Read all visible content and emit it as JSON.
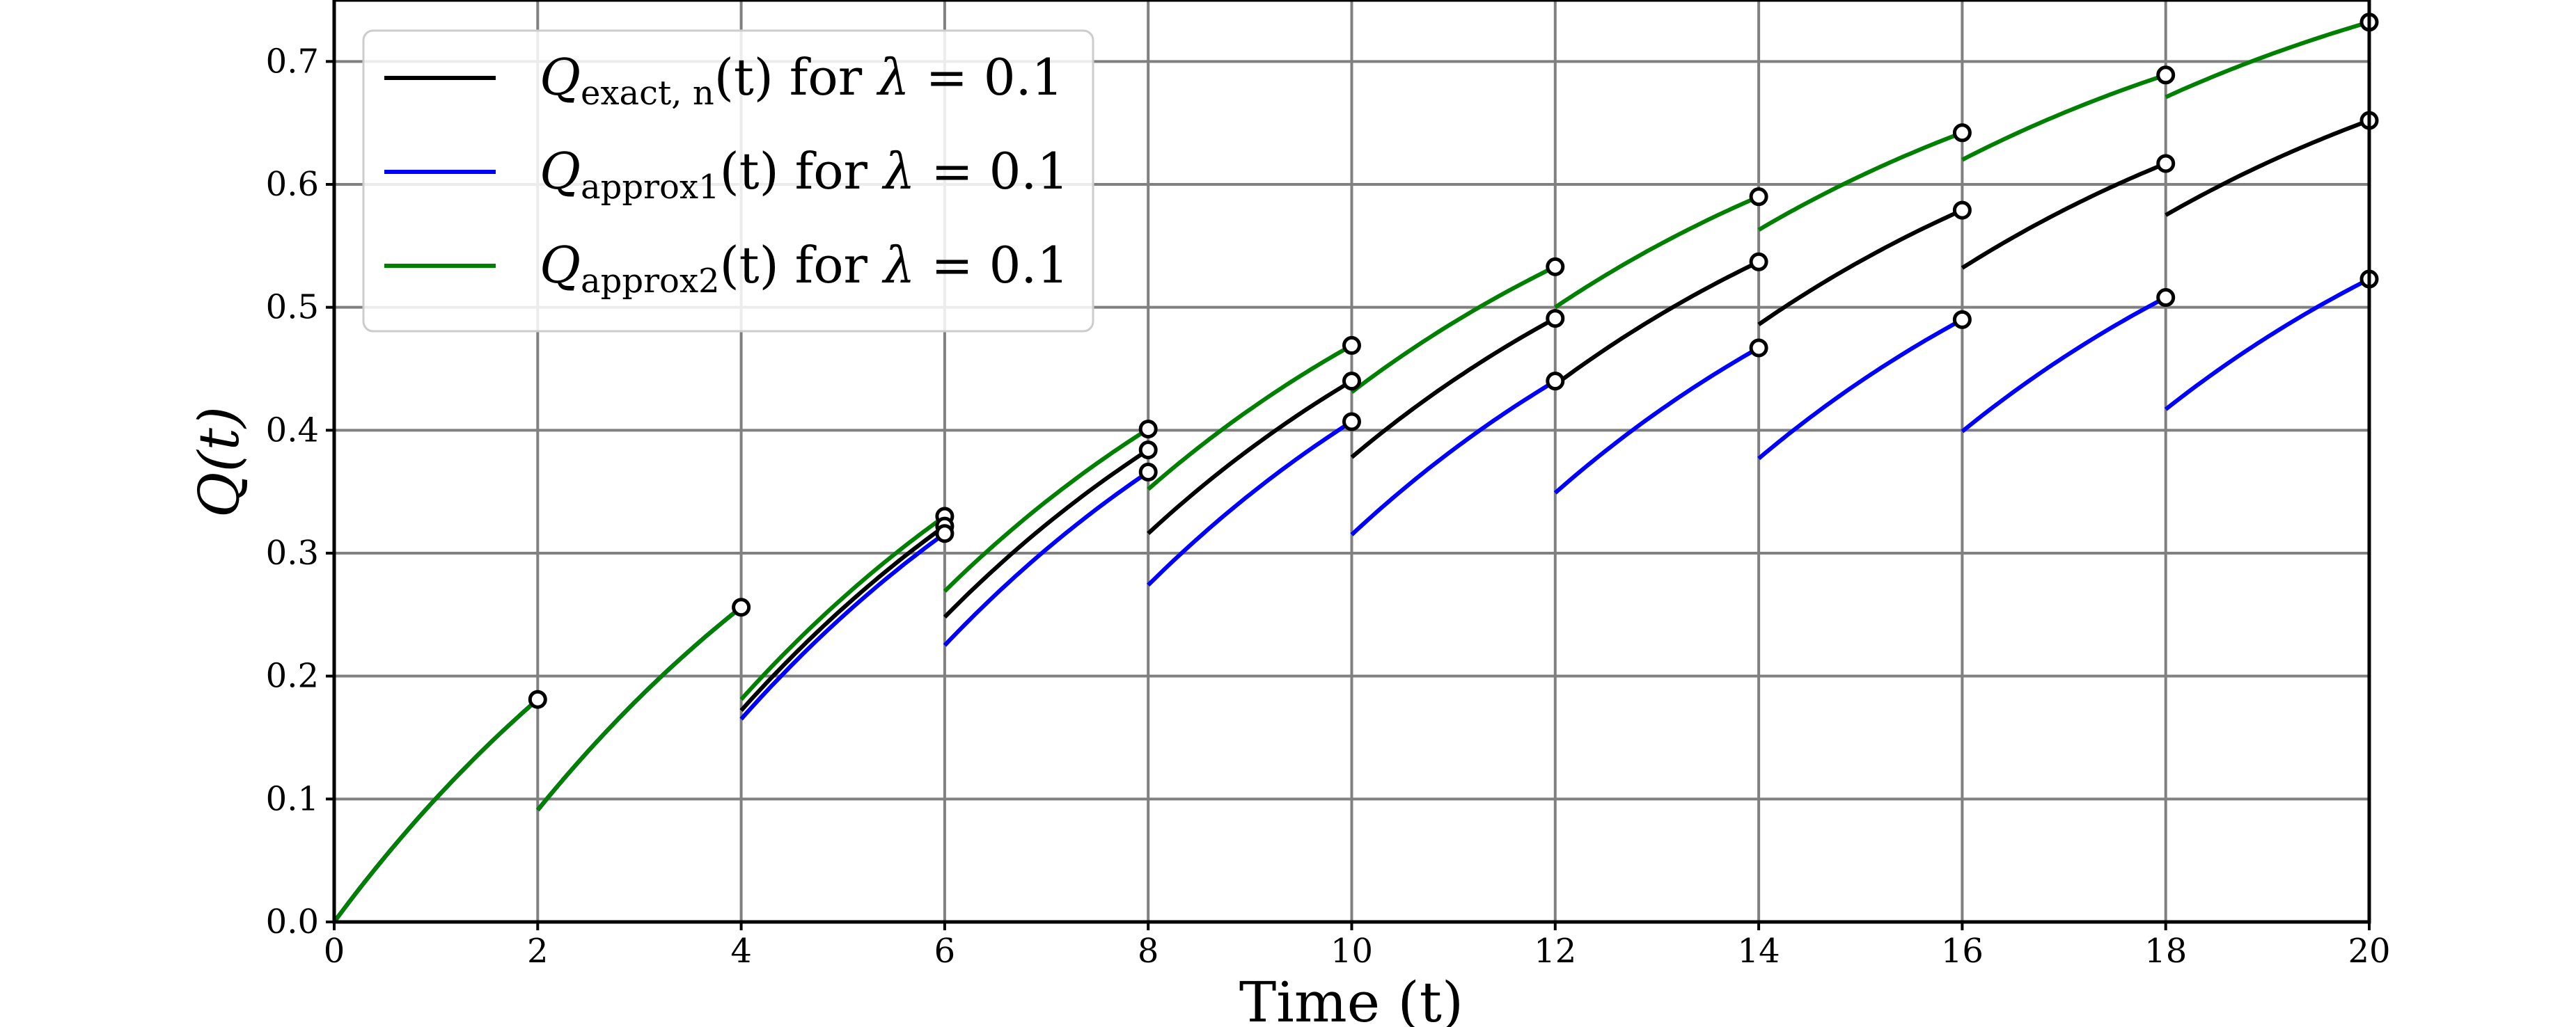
{
  "chart_data": {
    "type": "line",
    "xlabel": "Time (t)",
    "ylabel": "Q(t)",
    "xlim": [
      0,
      20
    ],
    "ylim": [
      0,
      0.75
    ],
    "xticks": [
      0,
      2,
      4,
      6,
      8,
      10,
      12,
      14,
      16,
      18,
      20
    ],
    "yticks": [
      0.0,
      0.1,
      0.2,
      0.3,
      0.4,
      0.5,
      0.6,
      0.7
    ],
    "xtick_labels": [
      "0",
      "2",
      "4",
      "6",
      "8",
      "10",
      "12",
      "14",
      "16",
      "18",
      "20"
    ],
    "ytick_labels": [
      "0.0",
      "0.1",
      "0.2",
      "0.3",
      "0.4",
      "0.5",
      "0.6",
      "0.7"
    ],
    "grid": true,
    "legend_position": "top-left",
    "series": [
      {
        "name": "Q_exact,n(t) for λ = 0.1",
        "legend": {
          "symbol": "Q",
          "subscript": "exact, n",
          "mid": "(t) for ",
          "lambda": "λ",
          "value": "= 0.1"
        },
        "color": "#000000",
        "segments": [
          {
            "x": [
              0,
              2
            ],
            "y": [
              0.0,
              0.181
            ]
          },
          {
            "x": [
              2,
              4
            ],
            "y": [
              0.091,
              0.256
            ]
          },
          {
            "x": [
              4,
              6
            ],
            "y": [
              0.172,
              0.322
            ]
          },
          {
            "x": [
              6,
              8
            ],
            "y": [
              0.248,
              0.384
            ]
          },
          {
            "x": [
              8,
              10
            ],
            "y": [
              0.316,
              0.44
            ]
          },
          {
            "x": [
              10,
              12
            ],
            "y": [
              0.378,
              0.491
            ]
          },
          {
            "x": [
              12,
              14
            ],
            "y": [
              0.437,
              0.537
            ]
          },
          {
            "x": [
              14,
              16
            ],
            "y": [
              0.486,
              0.579
            ]
          },
          {
            "x": [
              16,
              18
            ],
            "y": [
              0.532,
              0.617
            ]
          },
          {
            "x": [
              18,
              20
            ],
            "y": [
              0.575,
              0.652
            ]
          }
        ]
      },
      {
        "name": "Q_approx1(t) for λ = 0.1",
        "legend": {
          "symbol": "Q",
          "subscript": "approx1",
          "mid": "(t) for ",
          "lambda": "λ",
          "value": "= 0.1"
        },
        "color": "#0000ff",
        "segments": [
          {
            "x": [
              0,
              2
            ],
            "y": [
              0.0,
              0.181
            ]
          },
          {
            "x": [
              2,
              4
            ],
            "y": [
              0.091,
              0.256
            ]
          },
          {
            "x": [
              4,
              6
            ],
            "y": [
              0.165,
              0.316
            ]
          },
          {
            "x": [
              6,
              8
            ],
            "y": [
              0.225,
              0.366
            ]
          },
          {
            "x": [
              8,
              10
            ],
            "y": [
              0.274,
              0.407
            ]
          },
          {
            "x": [
              10,
              12
            ],
            "y": [
              0.315,
              0.44
            ]
          },
          {
            "x": [
              12,
              14
            ],
            "y": [
              0.349,
              0.467
            ]
          },
          {
            "x": [
              14,
              16
            ],
            "y": [
              0.377,
              0.49
            ]
          },
          {
            "x": [
              16,
              18
            ],
            "y": [
              0.399,
              0.508
            ]
          },
          {
            "x": [
              18,
              20
            ],
            "y": [
              0.417,
              0.523
            ]
          }
        ]
      },
      {
        "name": "Q_approx2(t) for λ = 0.1",
        "legend": {
          "symbol": "Q",
          "subscript": "approx2",
          "mid": "(t) for ",
          "lambda": "λ",
          "value": "= 0.1"
        },
        "color": "#008000",
        "segments": [
          {
            "x": [
              0,
              2
            ],
            "y": [
              0.0,
              0.181
            ]
          },
          {
            "x": [
              2,
              4
            ],
            "y": [
              0.091,
              0.256
            ]
          },
          {
            "x": [
              4,
              6
            ],
            "y": [
              0.181,
              0.33
            ]
          },
          {
            "x": [
              6,
              8
            ],
            "y": [
              0.269,
              0.401
            ]
          },
          {
            "x": [
              8,
              10
            ],
            "y": [
              0.352,
              0.469
            ]
          },
          {
            "x": [
              10,
              12
            ],
            "y": [
              0.431,
              0.533
            ]
          },
          {
            "x": [
              12,
              14
            ],
            "y": [
              0.5,
              0.59
            ]
          },
          {
            "x": [
              14,
              16
            ],
            "y": [
              0.563,
              0.642
            ]
          },
          {
            "x": [
              16,
              18
            ],
            "y": [
              0.62,
              0.689
            ]
          },
          {
            "x": [
              18,
              20
            ],
            "y": [
              0.671,
              0.732
            ]
          }
        ]
      }
    ],
    "markers": {
      "style": "open-circle",
      "points": [
        {
          "x": 2,
          "y": 0.181
        },
        {
          "x": 4,
          "y": 0.256
        },
        {
          "x": 6,
          "y": 0.33
        },
        {
          "x": 6,
          "y": 0.322
        },
        {
          "x": 6,
          "y": 0.316
        },
        {
          "x": 8,
          "y": 0.401
        },
        {
          "x": 8,
          "y": 0.384
        },
        {
          "x": 8,
          "y": 0.366
        },
        {
          "x": 10,
          "y": 0.469
        },
        {
          "x": 10,
          "y": 0.44
        },
        {
          "x": 10,
          "y": 0.407
        },
        {
          "x": 12,
          "y": 0.533
        },
        {
          "x": 12,
          "y": 0.491
        },
        {
          "x": 12,
          "y": 0.44
        },
        {
          "x": 14,
          "y": 0.59
        },
        {
          "x": 14,
          "y": 0.537
        },
        {
          "x": 14,
          "y": 0.467
        },
        {
          "x": 16,
          "y": 0.642
        },
        {
          "x": 16,
          "y": 0.579
        },
        {
          "x": 16,
          "y": 0.49
        },
        {
          "x": 18,
          "y": 0.689
        },
        {
          "x": 18,
          "y": 0.617
        },
        {
          "x": 18,
          "y": 0.508
        },
        {
          "x": 20,
          "y": 0.732
        },
        {
          "x": 20,
          "y": 0.652
        },
        {
          "x": 20,
          "y": 0.523
        }
      ]
    }
  }
}
